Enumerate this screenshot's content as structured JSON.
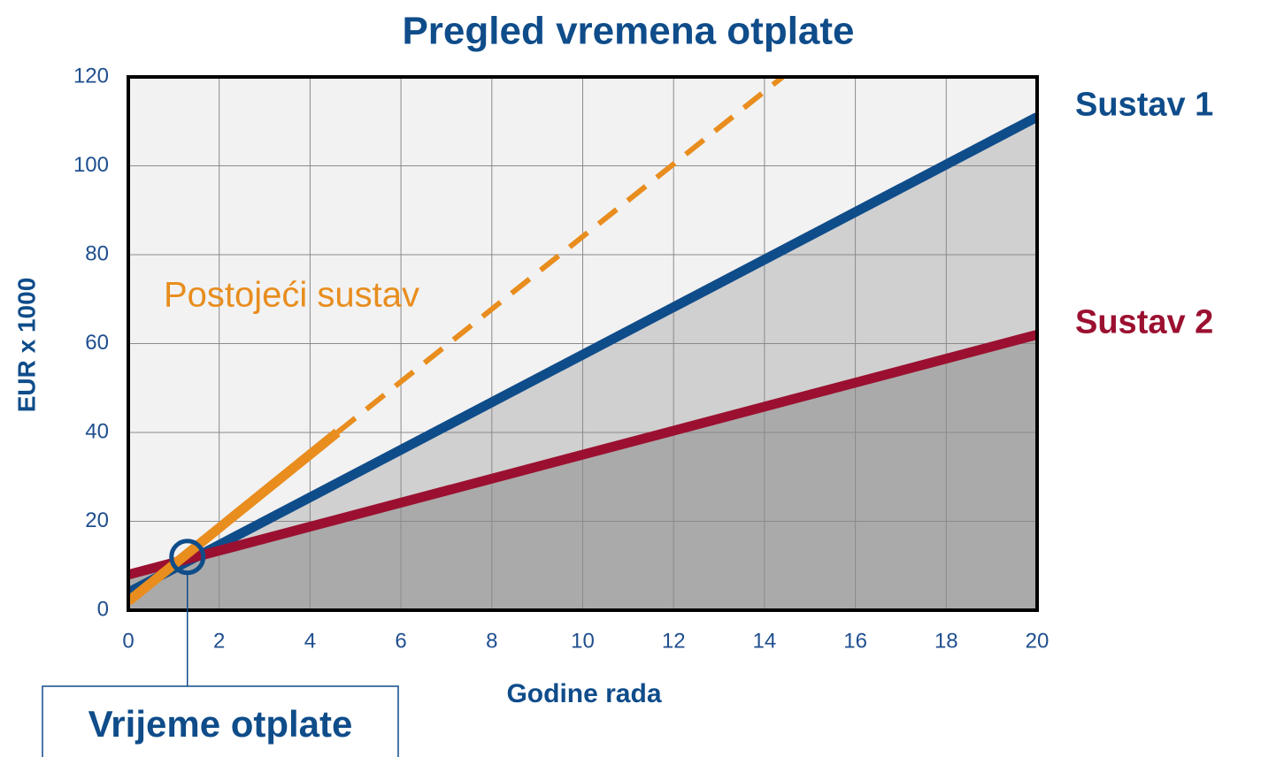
{
  "chart_data": {
    "type": "line",
    "title": "Pregled vremena otplate",
    "x_label": "Godine rada",
    "y_label": "EUR x 1000",
    "xlim": [
      0,
      20
    ],
    "ylim": [
      0,
      120
    ],
    "xticks": [
      0,
      2,
      4,
      6,
      8,
      10,
      12,
      14,
      16,
      18,
      20
    ],
    "yticks": [
      0,
      20,
      40,
      60,
      80,
      100,
      120
    ],
    "grid": true,
    "background": "#f2f2f2",
    "series": [
      {
        "name": "Sustav 1",
        "color": "#0f4c8a",
        "fill": "#d0d0d0",
        "x": [
          0,
          20
        ],
        "values": [
          4,
          111
        ]
      },
      {
        "name": "Sustav 2",
        "color": "#9b1030",
        "fill": "#aaaaaa",
        "x": [
          0,
          20
        ],
        "values": [
          8,
          62
        ]
      },
      {
        "name": "Postojeći sustav",
        "color": "#e88d1e",
        "x": [
          0,
          4.6
        ],
        "values": [
          2,
          40
        ]
      },
      {
        "color": "#e88d1e",
        "dashed": true,
        "x": [
          4.6,
          14.4
        ],
        "values": [
          40,
          120
        ]
      }
    ],
    "annotation": {
      "text": "Vrijeme otplate",
      "x": 1.3,
      "y": 12
    }
  }
}
